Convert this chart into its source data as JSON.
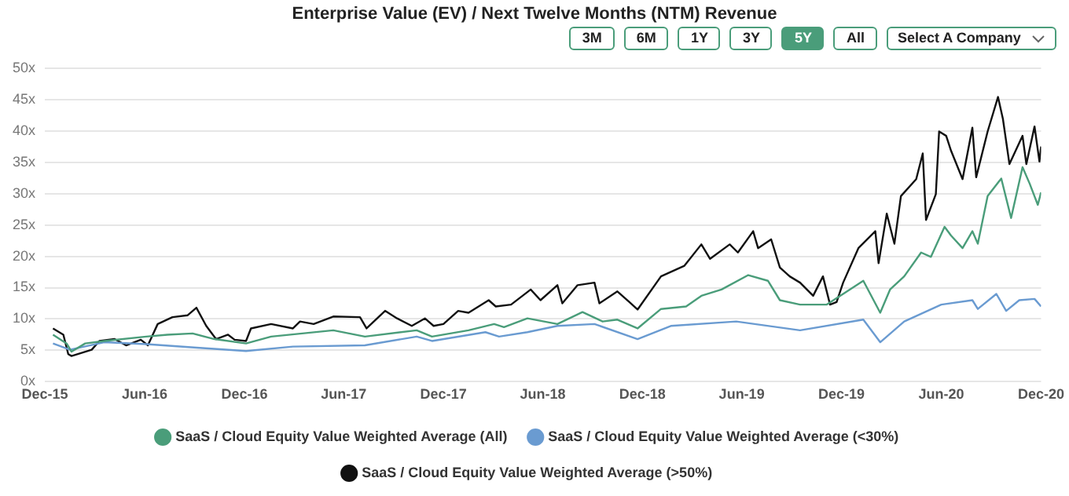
{
  "chart_data": {
    "type": "line",
    "title": "Enterprise Value (EV) / Next Twelve Months (NTM) Revenue",
    "annotations": [
      "3M",
      "6M",
      "1Y",
      "3Y",
      "5Y",
      "All",
      "Select A Company"
    ],
    "xlim": [
      "2015-12-01",
      "2020-12-01"
    ],
    "xticks": [
      {
        "value": "2015-12-01",
        "label": "Dec-15"
      },
      {
        "value": "2016-06-01",
        "label": "Jun-16"
      },
      {
        "value": "2016-12-01",
        "label": "Dec-16"
      },
      {
        "value": "2017-06-01",
        "label": "Jun-17"
      },
      {
        "value": "2017-12-01",
        "label": "Dec-17"
      },
      {
        "value": "2018-06-01",
        "label": "Jun-18"
      },
      {
        "value": "2018-12-01",
        "label": "Dec-18"
      },
      {
        "value": "2019-06-01",
        "label": "Jun-19"
      },
      {
        "value": "2019-12-01",
        "label": "Dec-19"
      },
      {
        "value": "2020-06-01",
        "label": "Jun-20"
      },
      {
        "value": "2020-12-01",
        "label": "Dec-20"
      }
    ],
    "ylim": [
      0,
      50
    ],
    "yticks": [
      {
        "value": 0,
        "label": "0x"
      },
      {
        "value": 5,
        "label": "5x"
      },
      {
        "value": 10,
        "label": "10x"
      },
      {
        "value": 15,
        "label": "15x"
      },
      {
        "value": 20,
        "label": "20x"
      },
      {
        "value": 25,
        "label": "25x"
      },
      {
        "value": 30,
        "label": "30x"
      },
      {
        "value": 35,
        "label": "35x"
      },
      {
        "value": 40,
        "label": "40x"
      },
      {
        "value": 45,
        "label": "45x"
      },
      {
        "value": 50,
        "label": "50x"
      }
    ],
    "grid": "y",
    "legend": "bottom",
    "marker": "none",
    "line_style": "solid",
    "series": [
      {
        "name": "SaaS / Cloud Equity Value Weighted Average (All)",
        "color": "#4a9d7a",
        "x": [
          "2015-12-16",
          "2016-01-10",
          "2016-01-19",
          "2016-02-13",
          "2016-03-19",
          "2016-06-04",
          "2016-07-13",
          "2016-08-28",
          "2016-10-07",
          "2016-12-04",
          "2017-01-19",
          "2017-05-13",
          "2017-07-10",
          "2017-10-13",
          "2017-11-10",
          "2018-01-16",
          "2018-03-04",
          "2018-03-22",
          "2018-05-04",
          "2018-06-28",
          "2018-08-13",
          "2018-09-19",
          "2018-10-16",
          "2018-11-22",
          "2019-01-04",
          "2019-02-19",
          "2019-03-19",
          "2019-04-25",
          "2019-06-13",
          "2019-07-19",
          "2019-08-10",
          "2019-09-16",
          "2019-11-04",
          "2019-12-04",
          "2020-01-10",
          "2020-02-10",
          "2020-02-28",
          "2020-03-25",
          "2020-04-25",
          "2020-05-13",
          "2020-06-07",
          "2020-06-19",
          "2020-07-10",
          "2020-07-28",
          "2020-08-07",
          "2020-08-25",
          "2020-09-19",
          "2020-10-07",
          "2020-10-28",
          "2020-11-10",
          "2020-11-25",
          "2020-12-01"
        ],
        "values": [
          7.5,
          6.1,
          4.8,
          6.1,
          6.5,
          7.2,
          7.5,
          7.7,
          6.8,
          6.1,
          7.2,
          8.2,
          7.2,
          8.2,
          7.2,
          8.2,
          9.2,
          8.7,
          10.1,
          9.2,
          11.1,
          9.6,
          9.9,
          8.5,
          11.6,
          12,
          13.7,
          14.7,
          17,
          16.1,
          13,
          12.3,
          12.3,
          14,
          16.1,
          11,
          14.7,
          16.8,
          20.6,
          19.9,
          24.7,
          23.3,
          21.3,
          24,
          22,
          29.6,
          32.4,
          26.1,
          34.2,
          31.6,
          28.2,
          30.2
        ]
      },
      {
        "name": "SaaS / Cloud Equity Value Weighted Average (<30%)",
        "color": "#6a9bd1",
        "x": [
          "2015-12-16",
          "2016-01-16",
          "2016-03-19",
          "2016-06-04",
          "2016-09-10",
          "2016-12-04",
          "2017-02-28",
          "2017-07-10",
          "2017-10-13",
          "2017-11-10",
          "2018-02-16",
          "2018-03-13",
          "2018-05-04",
          "2018-06-28",
          "2018-09-04",
          "2018-11-22",
          "2019-01-22",
          "2019-05-22",
          "2019-09-16",
          "2020-01-10",
          "2020-02-10",
          "2020-03-25",
          "2020-06-01",
          "2020-07-28",
          "2020-08-07",
          "2020-09-10",
          "2020-09-28",
          "2020-10-22",
          "2020-11-19",
          "2020-12-01"
        ],
        "values": [
          6.1,
          5.1,
          6.3,
          6,
          5.4,
          4.9,
          5.6,
          5.8,
          7.2,
          6.5,
          7.9,
          7.2,
          7.9,
          8.9,
          9.2,
          6.8,
          8.9,
          9.6,
          8.2,
          9.9,
          6.3,
          9.6,
          12.3,
          13,
          11.6,
          14,
          11.3,
          13,
          13.2,
          12
        ]
      },
      {
        "name": "SaaS / Cloud Equity Value Weighted Average (>50%)",
        "color": "#111111",
        "x": [
          "2015-12-16",
          "2016-01-04",
          "2016-01-13",
          "2016-01-19",
          "2016-02-25",
          "2016-03-10",
          "2016-04-07",
          "2016-04-28",
          "2016-05-25",
          "2016-06-07",
          "2016-06-25",
          "2016-07-22",
          "2016-08-19",
          "2016-09-04",
          "2016-09-22",
          "2016-10-10",
          "2016-11-01",
          "2016-11-13",
          "2016-12-04",
          "2016-12-13",
          "2017-01-19",
          "2017-02-28",
          "2017-03-13",
          "2017-04-07",
          "2017-05-13",
          "2017-07-01",
          "2017-07-13",
          "2017-08-16",
          "2017-09-07",
          "2017-10-04",
          "2017-10-28",
          "2017-11-13",
          "2017-12-01",
          "2017-12-28",
          "2018-01-16",
          "2018-02-22",
          "2018-03-07",
          "2018-04-04",
          "2018-05-04",
          "2018-05-10",
          "2018-05-28",
          "2018-06-28",
          "2018-07-07",
          "2018-08-04",
          "2018-09-04",
          "2018-09-13",
          "2018-10-16",
          "2018-11-07",
          "2018-11-22",
          "2019-01-04",
          "2019-02-16",
          "2019-03-19",
          "2019-04-04",
          "2019-05-10",
          "2019-05-25",
          "2019-06-22",
          "2019-07-01",
          "2019-07-25",
          "2019-08-10",
          "2019-08-28",
          "2019-09-16",
          "2019-10-10",
          "2019-10-28",
          "2019-11-10",
          "2019-11-22",
          "2019-12-04",
          "2020-01-01",
          "2020-02-01",
          "2020-02-07",
          "2020-02-22",
          "2020-03-07",
          "2020-03-19",
          "2020-04-16",
          "2020-04-28",
          "2020-05-04",
          "2020-05-22",
          "2020-05-28",
          "2020-06-10",
          "2020-06-19",
          "2020-07-10",
          "2020-07-28",
          "2020-08-04",
          "2020-08-25",
          "2020-09-13",
          "2020-09-22",
          "2020-10-04",
          "2020-10-28",
          "2020-11-04",
          "2020-11-19",
          "2020-11-28",
          "2020-12-01"
        ],
        "values": [
          8.5,
          7.5,
          4.4,
          4.1,
          5.1,
          6.5,
          6.8,
          5.8,
          6.7,
          5.8,
          9.2,
          10.3,
          10.6,
          11.8,
          8.9,
          6.8,
          7.5,
          6.7,
          6.5,
          8.5,
          9.2,
          8.5,
          9.6,
          9.2,
          10.4,
          10.3,
          8.5,
          11.3,
          10.1,
          8.9,
          10.1,
          8.9,
          9.2,
          11.3,
          11,
          13,
          12,
          12.3,
          14.3,
          14.7,
          13,
          15.4,
          12.5,
          15.4,
          15.8,
          12.5,
          14.4,
          12.7,
          11.5,
          16.8,
          18.5,
          21.9,
          19.6,
          21.9,
          20.6,
          24,
          21.3,
          22.7,
          18.2,
          16.8,
          15.8,
          13.7,
          16.8,
          12.3,
          12.7,
          15.8,
          21.3,
          24,
          18.9,
          26.8,
          22,
          29.6,
          32.3,
          36.4,
          25.8,
          29.9,
          39.9,
          39.2,
          36.8,
          32.3,
          40.5,
          32.6,
          39.9,
          45.4,
          41.9,
          34.7,
          39.2,
          34.7,
          40.7,
          35.1,
          37.5
        ]
      }
    ]
  }
}
